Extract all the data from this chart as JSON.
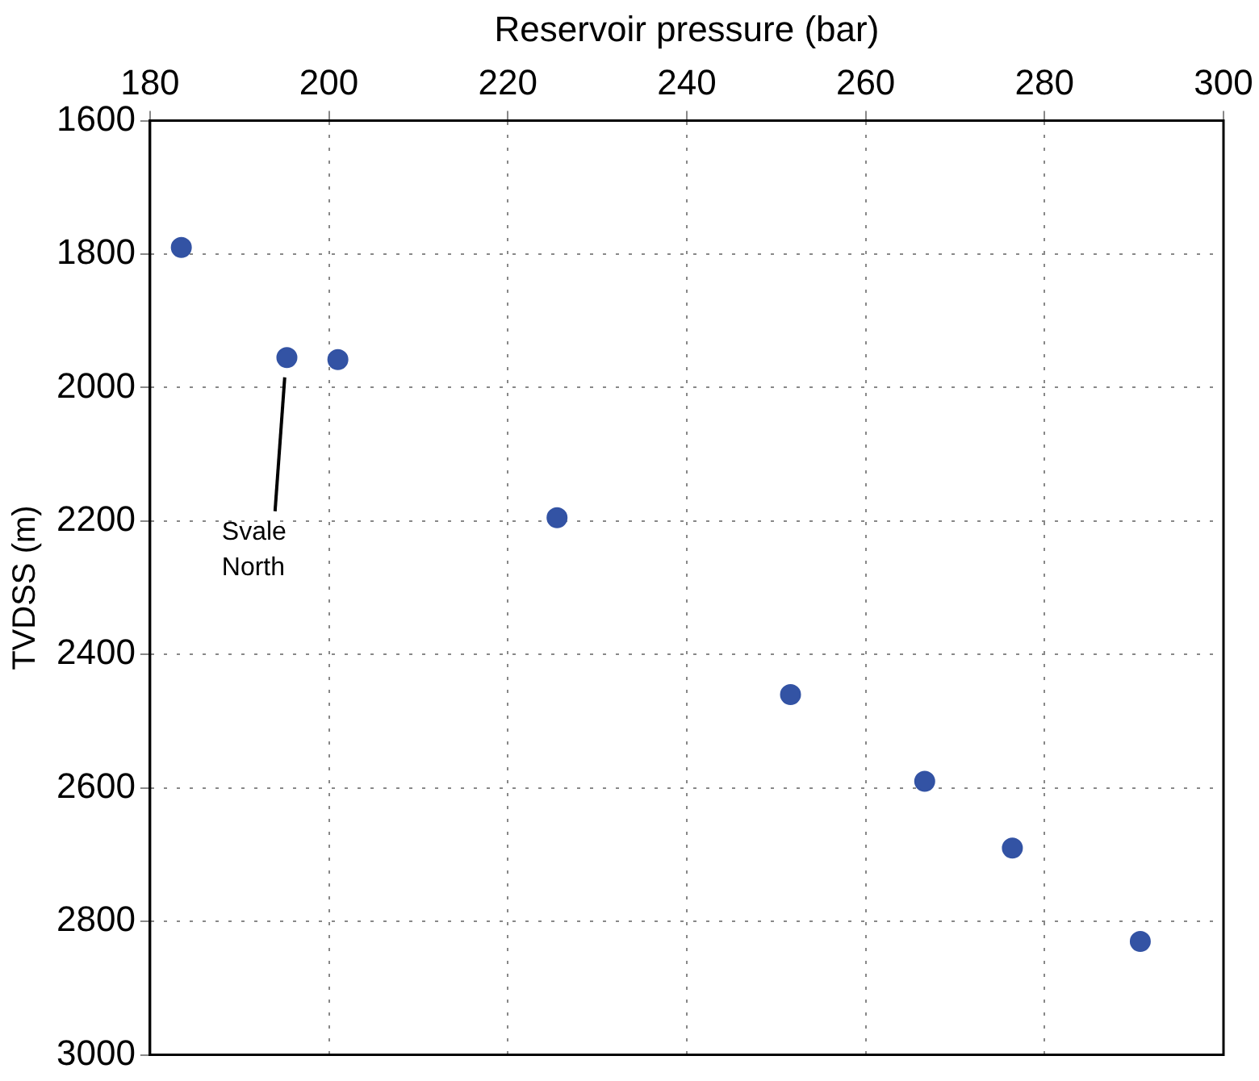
{
  "chart_data": {
    "type": "scatter",
    "xlabel": "Reservoir pressure (bar)",
    "ylabel": "TVDSS (m)",
    "x": [
      183.5,
      195.3,
      201,
      225.5,
      251.6,
      266.6,
      276.4,
      290.7
    ],
    "values": [
      1790,
      1955,
      1958,
      2195,
      2460,
      2590,
      2690,
      2830
    ],
    "color": "#3353a4",
    "marker": "circle",
    "grid": true,
    "xlim": [
      180,
      300
    ],
    "xticks": [
      180,
      200,
      220,
      240,
      260,
      280,
      300
    ],
    "ylim": [
      3000,
      1600
    ],
    "yticks": [
      1600,
      1800,
      2000,
      2200,
      2400,
      2600,
      2800,
      3000
    ],
    "annotations": [
      "Svale North"
    ]
  }
}
